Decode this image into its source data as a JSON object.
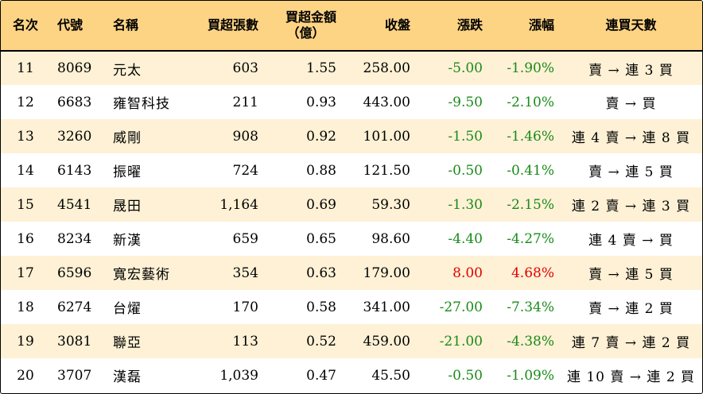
{
  "headers": {
    "rank": "名次",
    "code": "代號",
    "name": "名稱",
    "net_buy_lots": "買超張數",
    "net_buy_amount_line1": "買超金額",
    "net_buy_amount_line2": "（億）",
    "close": "收盤",
    "change": "漲跌",
    "change_pct": "漲幅",
    "consecutive_days": "連買天數"
  },
  "colors": {
    "header_bg": "#fdd484",
    "odd_row_bg": "#fef1d5",
    "up": "#e00000",
    "down": "#1a8a1a"
  },
  "rows": [
    {
      "rank": "11",
      "code": "8069",
      "name": "元太",
      "lots": "603",
      "amount": "1.55",
      "close": "258.00",
      "change": "-5.00",
      "pct": "-1.90%",
      "days": "賣 → 連 3 買",
      "dir": "down"
    },
    {
      "rank": "12",
      "code": "6683",
      "name": "雍智科技",
      "lots": "211",
      "amount": "0.93",
      "close": "443.00",
      "change": "-9.50",
      "pct": "-2.10%",
      "days": "賣 → 買",
      "dir": "down"
    },
    {
      "rank": "13",
      "code": "3260",
      "name": "威剛",
      "lots": "908",
      "amount": "0.92",
      "close": "101.00",
      "change": "-1.50",
      "pct": "-1.46%",
      "days": "連 4 賣 → 連 8 買",
      "dir": "down"
    },
    {
      "rank": "14",
      "code": "6143",
      "name": "振曜",
      "lots": "724",
      "amount": "0.88",
      "close": "121.50",
      "change": "-0.50",
      "pct": "-0.41%",
      "days": "賣 → 連 5 買",
      "dir": "down"
    },
    {
      "rank": "15",
      "code": "4541",
      "name": "晟田",
      "lots": "1,164",
      "amount": "0.69",
      "close": "59.30",
      "change": "-1.30",
      "pct": "-2.15%",
      "days": "連 2 賣 → 連 3 買",
      "dir": "down"
    },
    {
      "rank": "16",
      "code": "8234",
      "name": "新漢",
      "lots": "659",
      "amount": "0.65",
      "close": "98.60",
      "change": "-4.40",
      "pct": "-4.27%",
      "days": "連 4 賣 → 買",
      "dir": "down"
    },
    {
      "rank": "17",
      "code": "6596",
      "name": "寬宏藝術",
      "lots": "354",
      "amount": "0.63",
      "close": "179.00",
      "change": "8.00",
      "pct": "4.68%",
      "days": "賣 → 連 5 買",
      "dir": "up"
    },
    {
      "rank": "18",
      "code": "6274",
      "name": "台燿",
      "lots": "170",
      "amount": "0.58",
      "close": "341.00",
      "change": "-27.00",
      "pct": "-7.34%",
      "days": "賣 → 連 2 買",
      "dir": "down"
    },
    {
      "rank": "19",
      "code": "3081",
      "name": "聯亞",
      "lots": "113",
      "amount": "0.52",
      "close": "459.00",
      "change": "-21.00",
      "pct": "-4.38%",
      "days": "連 7 賣 → 連 2 買",
      "dir": "down"
    },
    {
      "rank": "20",
      "code": "3707",
      "name": "漢磊",
      "lots": "1,039",
      "amount": "0.47",
      "close": "45.50",
      "change": "-0.50",
      "pct": "-1.09%",
      "days": "連 10 賣 → 連 2 買",
      "dir": "down"
    }
  ]
}
